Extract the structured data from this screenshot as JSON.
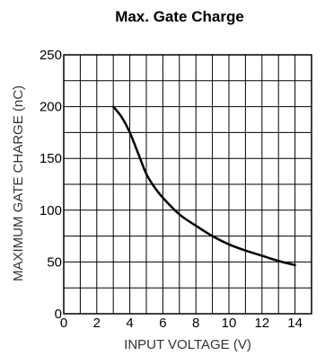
{
  "chart_data": {
    "type": "line",
    "title": "Max. Gate Charge",
    "xlabel": "INPUT VOLTAGE (V)",
    "ylabel": "MAXIMUM GATE CHARGE (nC)",
    "xlim": [
      0,
      15
    ],
    "ylim": [
      0,
      250
    ],
    "xticks": [
      0,
      2,
      4,
      6,
      8,
      10,
      12,
      14
    ],
    "yticks": [
      0,
      50,
      100,
      150,
      200,
      250
    ],
    "grid": true,
    "grid_minor_x": 1,
    "grid_minor_y": 25,
    "series": [
      {
        "name": "",
        "color": "#000000",
        "x": [
          3,
          3.5,
          4,
          4.5,
          5,
          5.5,
          6,
          7,
          8,
          9,
          10,
          11,
          12,
          13,
          14
        ],
        "y": [
          200,
          190,
          175,
          155,
          135,
          122,
          112,
          96,
          85,
          75,
          67,
          61,
          56,
          51,
          47
        ]
      }
    ]
  }
}
